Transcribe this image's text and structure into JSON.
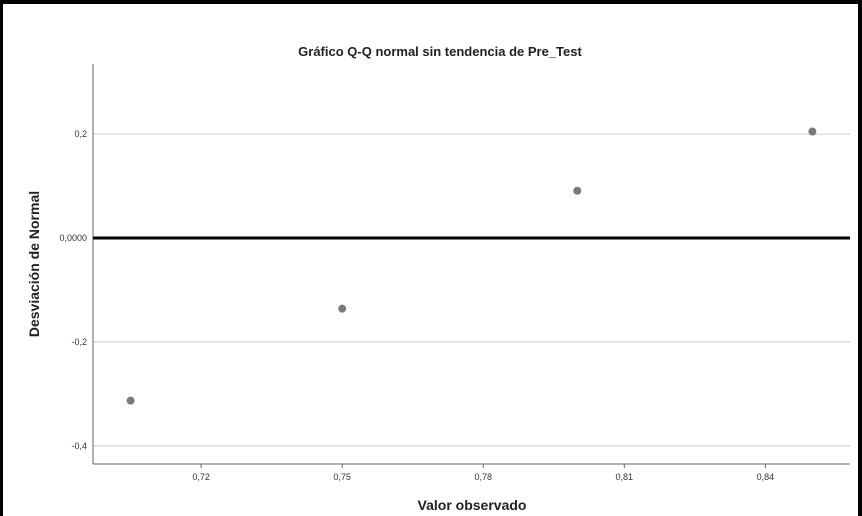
{
  "chart_data": {
    "type": "scatter",
    "title": "Gráfico Q-Q normal sin tendencia de Pre_Test",
    "xlabel": "Valor observado",
    "ylabel": "Desviación de Normal",
    "xlim": [
      0.697,
      0.858
    ],
    "ylim": [
      -0.435,
      0.335
    ],
    "x_ticks": [
      0.72,
      0.75,
      0.78,
      0.81,
      0.84
    ],
    "x_tick_labels": [
      "0,72",
      "0,75",
      "0,78",
      "0,81",
      "0,84"
    ],
    "y_ticks": [
      -0.4,
      -0.2,
      0.0,
      0.2
    ],
    "y_tick_labels": [
      "-0,4",
      "-0,2",
      "0,0000",
      "0,2"
    ],
    "reference_line_y": 0.0,
    "grid": "horizontal",
    "points": [
      {
        "x": 0.705,
        "y": -0.313
      },
      {
        "x": 0.75,
        "y": -0.136
      },
      {
        "x": 0.8,
        "y": 0.091
      },
      {
        "x": 0.85,
        "y": 0.205
      }
    ],
    "colors": {
      "points": "#7a7a7a",
      "grid": "#cfcfcf",
      "reference_line": "#000000",
      "axis": "#666666"
    }
  }
}
